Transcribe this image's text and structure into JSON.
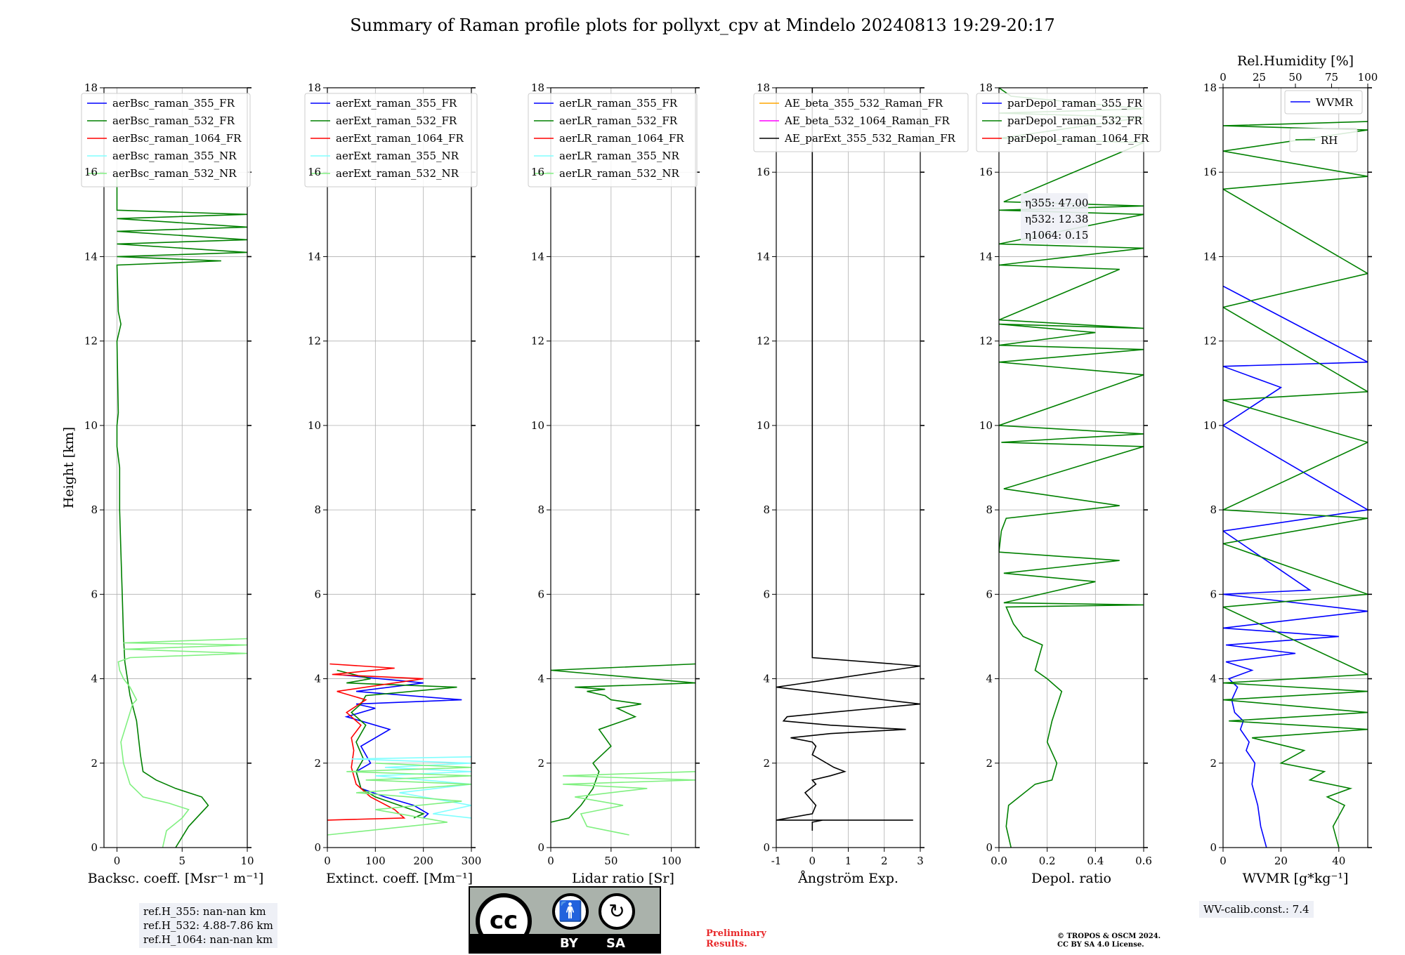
{
  "title": "Summary of Raman profile plots for pollyxt_cpv at Mindelo 20240813 19:29-20:17",
  "ylabel": "Height [km]",
  "ref_heights": [
    "ref.H_355: nan-nan km",
    "ref.H_532: 4.88-7.86 km",
    "ref.H_1064: nan-nan km"
  ],
  "wv_calib": "WV-calib.const.: 7.4",
  "preliminary": [
    "Preliminary",
    "Results."
  ],
  "copyright": [
    "© TROPOS & OSCM 2024.",
    "CC BY SA 4.0 License."
  ],
  "license_badge": {
    "by": "BY",
    "sa": "SA",
    "cc": "cc"
  },
  "colors": {
    "blue": "#0000ff",
    "green": "#008000",
    "red": "#ff0000",
    "cyan": "#80ffff",
    "lightgreen": "#80f080",
    "orange": "#ffa500",
    "magenta": "#ff00ff",
    "black": "#000000"
  },
  "chart_data": [
    {
      "type": "line",
      "xlabel": "Backsc. coeff. [Msr⁻¹ m⁻¹]",
      "ylabel": "Height [km]",
      "xlim": [
        -1,
        10
      ],
      "ylim": [
        0,
        18
      ],
      "xticks": [
        0,
        5,
        10
      ],
      "yticks": [
        0,
        2,
        4,
        6,
        8,
        10,
        12,
        14,
        16,
        18
      ],
      "grid": true,
      "legend_position": "upper-left",
      "legend": [
        "aerBsc_raman_355_FR",
        "aerBsc_raman_532_FR",
        "aerBsc_raman_1064_FR",
        "aerBsc_raman_355_NR",
        "aerBsc_raman_532_NR"
      ],
      "series": [
        {
          "name": "aerBsc_raman_532_FR",
          "color": "green",
          "x": [
            4.5,
            5.5,
            7.0,
            6.5,
            4.5,
            3.0,
            2.0,
            1.8,
            1.5,
            1.0,
            0.8,
            0.6,
            0.5,
            0.4,
            0.3,
            0.2,
            0.2,
            0.0,
            0.0,
            0.1,
            0.0,
            0.3,
            0.1,
            0.0,
            8.0,
            0.0,
            10,
            0.0,
            10,
            0.0,
            10,
            0.0,
            10,
            0.0,
            0.0,
            0.0
          ],
          "y": [
            0.0,
            0.5,
            1.0,
            1.2,
            1.4,
            1.6,
            1.8,
            2.2,
            3.0,
            3.6,
            4.0,
            4.4,
            5.0,
            6.0,
            7.0,
            8.0,
            9.0,
            9.5,
            10.0,
            10.3,
            12.0,
            12.4,
            12.7,
            13.8,
            13.9,
            14.0,
            14.1,
            14.3,
            14.4,
            14.6,
            14.7,
            14.9,
            15.0,
            15.1,
            15.6,
            16.0
          ]
        },
        {
          "name": "aerBsc_raman_532_NR",
          "color": "lightgreen",
          "x": [
            3.5,
            3.8,
            5.0,
            5.5,
            4.0,
            2.0,
            1.0,
            0.5,
            0.3,
            0.8,
            1.2,
            1.5,
            1.0,
            0.5,
            0.2,
            0.1,
            1.0,
            10,
            0.5,
            10,
            0.5,
            10
          ],
          "y": [
            0.0,
            0.4,
            0.7,
            0.9,
            1.05,
            1.2,
            1.5,
            2.0,
            2.5,
            3.0,
            3.4,
            3.5,
            3.8,
            4.0,
            4.2,
            4.4,
            4.5,
            4.6,
            4.7,
            4.8,
            4.85,
            4.95
          ]
        }
      ]
    },
    {
      "type": "line",
      "xlabel": "Extinct. coeff. [Mm⁻¹]",
      "xlim": [
        0,
        300
      ],
      "ylim": [
        0,
        18
      ],
      "xticks": [
        0,
        100,
        200,
        300
      ],
      "yticks": [
        0,
        2,
        4,
        6,
        8,
        10,
        12,
        14,
        16,
        18
      ],
      "grid": true,
      "legend_position": "upper-left",
      "legend": [
        "aerExt_raman_355_FR",
        "aerExt_raman_532_FR",
        "aerExt_raman_1064_FR",
        "aerExt_raman_355_NR",
        "aerExt_raman_532_NR"
      ],
      "series": [
        {
          "name": "aerExt_raman_355_FR",
          "color": "blue",
          "x": [
            200,
            210,
            180,
            120,
            70,
            60,
            90,
            70,
            130,
            40,
            100,
            60,
            280,
            60,
            200,
            20
          ],
          "y": [
            0.7,
            0.8,
            1.0,
            1.2,
            1.4,
            1.8,
            2.0,
            2.4,
            2.8,
            3.1,
            3.3,
            3.4,
            3.5,
            3.7,
            3.9,
            4.1
          ]
        },
        {
          "name": "aerExt_raman_532_FR",
          "color": "green",
          "x": [
            180,
            200,
            150,
            100,
            70,
            60,
            75,
            60,
            80,
            50,
            70,
            80,
            270,
            40,
            90,
            20
          ],
          "y": [
            0.7,
            0.8,
            1.0,
            1.2,
            1.4,
            1.8,
            2.1,
            2.5,
            2.9,
            3.2,
            3.4,
            3.6,
            3.8,
            3.9,
            4.0,
            4.2
          ]
        },
        {
          "name": "aerExt_raman_1064_FR",
          "color": "red",
          "x": [
            0,
            160,
            140,
            90,
            60,
            50,
            55,
            50,
            70,
            40,
            80,
            20,
            200,
            10,
            140,
            5
          ],
          "y": [
            0.65,
            0.7,
            0.9,
            1.2,
            1.5,
            1.9,
            2.3,
            2.6,
            2.9,
            3.2,
            3.5,
            3.7,
            4.0,
            4.1,
            4.25,
            4.35
          ]
        },
        {
          "name": "aerExt_raman_355_NR",
          "color": "cyan",
          "x": [
            300,
            220,
            300,
            150,
            300,
            100,
            300,
            120,
            300,
            50,
            300
          ],
          "y": [
            0.7,
            0.8,
            1.0,
            1.3,
            1.5,
            1.7,
            1.8,
            1.9,
            2.0,
            2.1,
            2.15
          ]
        },
        {
          "name": "aerExt_raman_532_NR",
          "color": "lightgreen",
          "x": [
            0,
            250,
            100,
            280,
            60,
            300,
            80,
            300,
            40,
            300,
            100
          ],
          "y": [
            0.3,
            0.6,
            0.9,
            1.1,
            1.3,
            1.5,
            1.6,
            1.7,
            1.8,
            1.9,
            2.0
          ]
        }
      ]
    },
    {
      "type": "line",
      "xlabel": "Lidar ratio [Sr]",
      "xlim": [
        0,
        120
      ],
      "ylim": [
        0,
        18
      ],
      "xticks": [
        0,
        50,
        100
      ],
      "yticks": [
        0,
        2,
        4,
        6,
        8,
        10,
        12,
        14,
        16,
        18
      ],
      "grid": true,
      "legend_position": "upper-left",
      "legend": [
        "aerLR_raman_355_FR",
        "aerLR_raman_532_FR",
        "aerLR_raman_1064_FR",
        "aerLR_raman_355_NR",
        "aerLR_raman_532_NR"
      ],
      "series": [
        {
          "name": "aerLR_raman_532_FR",
          "color": "green",
          "x": [
            0,
            15,
            25,
            35,
            40,
            35,
            50,
            40,
            70,
            55,
            75,
            50,
            45,
            30,
            45,
            20,
            120,
            0,
            120
          ],
          "y": [
            0.6,
            0.7,
            1.0,
            1.4,
            1.8,
            2.0,
            2.4,
            2.8,
            3.1,
            3.3,
            3.4,
            3.5,
            3.6,
            3.7,
            3.75,
            3.8,
            3.9,
            4.2,
            4.35
          ]
        },
        {
          "name": "aerLR_raman_532_NR",
          "color": "lightgreen",
          "x": [
            65,
            30,
            25,
            60,
            20,
            80,
            10,
            120,
            10,
            120
          ],
          "y": [
            0.3,
            0.5,
            0.8,
            1.0,
            1.2,
            1.4,
            1.5,
            1.6,
            1.7,
            1.8
          ]
        }
      ]
    },
    {
      "type": "line",
      "xlabel": "Ångström Exp.",
      "xlim": [
        -1,
        3
      ],
      "ylim": [
        0,
        18
      ],
      "xticks": [
        -1,
        0,
        1,
        2,
        3
      ],
      "yticks": [
        0,
        2,
        4,
        6,
        8,
        10,
        12,
        14,
        16,
        18
      ],
      "grid": true,
      "legend_position": "upper-left",
      "legend": [
        "AE_beta_355_532_Raman_FR",
        "AE_beta_532_1064_Raman_FR",
        "AE_parExt_355_532_Raman_FR"
      ],
      "series": [
        {
          "name": "AE_parExt_355_532_Raman_FR",
          "color": "black",
          "x": [
            0.0,
            0.0,
            0.3,
            2.8,
            -1.0,
            0.0,
            0.1,
            -0.2,
            0.1,
            0.0,
            0.5,
            0.9,
            0.6,
            0.0,
            0.1,
            0.0,
            -0.6,
            0.5,
            2.6,
            0.5,
            -0.8,
            -0.7,
            0.5,
            3.0,
            -1.0,
            3.0,
            0.0,
            0.0
          ],
          "y": [
            0.4,
            0.6,
            0.65,
            0.65,
            0.65,
            0.8,
            1.0,
            1.3,
            1.5,
            1.6,
            1.7,
            1.8,
            1.9,
            2.2,
            2.4,
            2.5,
            2.6,
            2.7,
            2.8,
            2.9,
            3.0,
            3.1,
            3.2,
            3.4,
            3.8,
            4.3,
            4.5,
            18
          ]
        }
      ]
    },
    {
      "type": "line",
      "xlabel": "Depol. ratio",
      "xlim": [
        0,
        0.6
      ],
      "ylim": [
        0,
        18
      ],
      "xticks": [
        0.0,
        0.2,
        0.4,
        0.6
      ],
      "yticks": [
        0,
        2,
        4,
        6,
        8,
        10,
        12,
        14,
        16,
        18
      ],
      "grid": true,
      "legend_position": "upper-left",
      "legend": [
        "parDepol_raman_355_FR",
        "parDepol_raman_532_FR",
        "parDepol_raman_1064_FR"
      ],
      "annotations": [
        "η355: 47.00",
        "η532: 12.38",
        "η1064: 0.15"
      ],
      "series": [
        {
          "name": "parDepol_raman_532_FR",
          "color": "green",
          "x": [
            0.05,
            0.03,
            0.04,
            0.15,
            0.22,
            0.24,
            0.2,
            0.22,
            0.26,
            0.2,
            0.15,
            0.18,
            0.1,
            0.06,
            0.03,
            0.6,
            0.02,
            0.4,
            0.02,
            0.5,
            0.0,
            0.01,
            0.03,
            0.5,
            0.02,
            0.6,
            0.01,
            0.6,
            0.0,
            0.6,
            0.0,
            0.6,
            0.0,
            0.4,
            0.0,
            0.6,
            0.0,
            0.5,
            0.0,
            0.6,
            0.0,
            0.6,
            0.0,
            0.6,
            0.02,
            0.6,
            0.0,
            0.6,
            0.0,
            0.6,
            0.05,
            0.0
          ],
          "y": [
            0.0,
            0.5,
            1.0,
            1.5,
            1.6,
            2.0,
            2.5,
            3.0,
            3.7,
            4.0,
            4.2,
            4.8,
            5.0,
            5.3,
            5.7,
            5.75,
            5.8,
            6.3,
            6.5,
            6.8,
            7.0,
            7.5,
            7.8,
            8.1,
            8.5,
            9.5,
            9.6,
            9.8,
            10.0,
            11.2,
            11.5,
            11.8,
            11.9,
            12.2,
            12.4,
            12.3,
            12.5,
            13.7,
            13.8,
            14.2,
            14.3,
            15.0,
            15.1,
            15.2,
            15.3,
            16.7,
            16.8,
            17.3,
            17.4,
            17.5,
            17.8,
            18
          ]
        }
      ]
    },
    {
      "type": "line",
      "xlabel": "WVMR [g*kg⁻¹]",
      "xlabel_top": "Rel.Humidity [%]",
      "xlim": [
        0,
        50
      ],
      "xlim_top": [
        0,
        100
      ],
      "ylim": [
        0,
        18
      ],
      "xticks": [
        0,
        20,
        40
      ],
      "xticks_top": [
        0,
        25,
        50,
        75,
        100
      ],
      "yticks": [
        0,
        2,
        4,
        6,
        8,
        10,
        12,
        14,
        16,
        18
      ],
      "grid": true,
      "legend_position": "upper-right",
      "legend": [
        "WVMR",
        "RH"
      ],
      "series": [
        {
          "name": "WVMR",
          "color": "blue",
          "x": [
            15,
            13,
            12,
            10,
            11,
            8,
            9,
            6,
            7,
            4,
            3,
            5,
            2,
            10,
            1,
            25,
            1,
            40,
            0,
            50,
            0,
            30,
            0,
            50,
            0,
            20,
            0,
            50,
            0
          ],
          "y": [
            0.0,
            0.5,
            1.0,
            1.5,
            2.0,
            2.3,
            2.5,
            2.8,
            3.0,
            3.2,
            3.5,
            3.8,
            4.0,
            4.2,
            4.4,
            4.6,
            4.8,
            5.0,
            5.2,
            5.6,
            6.0,
            6.1,
            7.5,
            8.0,
            10.0,
            10.9,
            11.4,
            11.5,
            13.3
          ]
        },
        {
          "name": "RH",
          "color": "green",
          "x": [
            40,
            38,
            42,
            36,
            44,
            30,
            35,
            20,
            28,
            10,
            50,
            2,
            50,
            0,
            50,
            0,
            50,
            0,
            50,
            0,
            50,
            0,
            50,
            0,
            50,
            0,
            50,
            0,
            50,
            0,
            50,
            0,
            50
          ],
          "y": [
            0.0,
            0.5,
            1.0,
            1.2,
            1.4,
            1.6,
            1.8,
            2.0,
            2.3,
            2.6,
            2.8,
            3.0,
            3.2,
            3.5,
            3.7,
            3.9,
            4.1,
            5.7,
            6.0,
            7.2,
            7.8,
            8.0,
            9.6,
            10.6,
            10.8,
            12.8,
            13.6,
            15.6,
            15.9,
            16.5,
            17.0,
            17.1,
            17.2
          ]
        }
      ]
    }
  ]
}
